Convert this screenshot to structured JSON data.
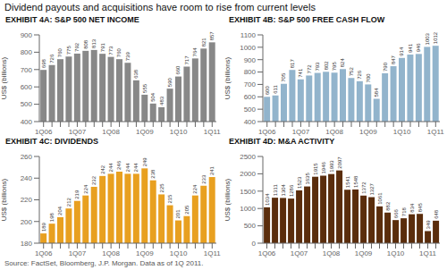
{
  "title": "Dividend payouts and acquisitions have room to rise from current levels",
  "annotations": [
    "Source: FactSet, Bloomberg, J.P. Morgan. Data as of 1Q 2011."
  ],
  "chart_data": [
    {
      "type": "bar",
      "title": "EXHIBIT 4A: S&P 500 NET INCOME",
      "ylabel": "US$ (billions)",
      "categories": [
        "1Q06",
        null,
        null,
        null,
        "1Q07",
        null,
        null,
        null,
        "1Q08",
        null,
        null,
        null,
        "1Q09",
        null,
        null,
        null,
        "1Q10",
        null,
        null,
        null,
        "1Q11"
      ],
      "values": [
        698,
        726,
        760,
        775,
        792,
        808,
        813,
        791,
        773,
        760,
        739,
        638,
        555,
        504,
        483,
        590,
        660,
        717,
        764,
        821,
        857
      ],
      "color": "#888888",
      "ylim": [
        400,
        900
      ],
      "yticks": [
        400,
        500,
        600,
        700,
        800,
        900
      ],
      "grid": false,
      "data_labels": true
    },
    {
      "type": "bar",
      "title": "EXHIBIT 4B: S&P 500 FREE CASH FLOW",
      "ylabel": "US$ (billions)",
      "categories": [
        "1Q06",
        null,
        null,
        null,
        "1Q07",
        null,
        null,
        null,
        "1Q08",
        null,
        null,
        null,
        "1Q09",
        null,
        null,
        null,
        "1Q10",
        null,
        null,
        null,
        "1Q11"
      ],
      "values": [
        600,
        611,
        705,
        817,
        741,
        772,
        793,
        802,
        795,
        824,
        752,
        726,
        700,
        584,
        790,
        847,
        914,
        941,
        946,
        1003,
        1012
      ],
      "color": "#92b4cc",
      "ylim": [
        400,
        1100
      ],
      "yticks": [
        400,
        500,
        600,
        700,
        800,
        900,
        1000,
        1100
      ],
      "grid": false,
      "data_labels": true
    },
    {
      "type": "bar",
      "title": "EXHIBIT 4C: DIVIDENDS",
      "ylabel": "US$ (billions)",
      "categories": [
        "1Q06",
        null,
        null,
        null,
        "1Q07",
        null,
        null,
        null,
        "1Q08",
        null,
        null,
        null,
        "1Q09",
        null,
        null,
        null,
        "1Q10",
        null,
        null,
        null,
        "1Q11"
      ],
      "values": [
        189,
        198,
        204,
        212,
        219,
        224,
        232,
        242,
        244,
        246,
        244,
        244,
        249,
        238,
        225,
        215,
        201,
        205,
        224,
        233,
        241
      ],
      "color": "#e8a020",
      "ylim": [
        180,
        260
      ],
      "yticks": [
        180,
        200,
        220,
        240,
        260
      ],
      "grid": false,
      "data_labels": true
    },
    {
      "type": "bar",
      "title": "EXHIBIT 4D: M&A ACTIVITY",
      "ylabel": "US$ (billions)",
      "categories": [
        "1Q06",
        null,
        null,
        null,
        "1Q07",
        null,
        null,
        null,
        "1Q08",
        null,
        null,
        null,
        "1Q09",
        null,
        null,
        null,
        "1Q10",
        null,
        null,
        null,
        "1Q11",
        null
      ],
      "values": [
        1034,
        1311,
        1304,
        1286,
        1523,
        1635,
        1915,
        1946,
        1993,
        2097,
        1541,
        1548,
        1372,
        1327,
        1061,
        882,
        666,
        718,
        834,
        845,
        349,
        648
      ],
      "color": "#5a2d0c",
      "ylim": [
        0,
        2500
      ],
      "yticks": [
        0,
        500,
        1000,
        1500,
        2000,
        2500
      ],
      "grid": false,
      "data_labels": true
    }
  ]
}
